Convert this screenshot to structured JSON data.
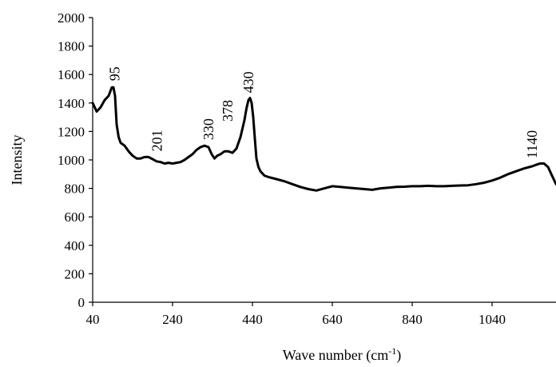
{
  "chart_data": {
    "type": "line",
    "title": "",
    "xlabel": "Wave number (cm",
    "xlabel_sup": "-1",
    "xlabel_end": ")",
    "ylabel": "Intensity",
    "xlim": [
      40,
      1200
    ],
    "ylim": [
      0,
      2000
    ],
    "x_ticks": [
      40,
      240,
      440,
      640,
      840,
      1040
    ],
    "y_ticks": [
      0,
      200,
      400,
      600,
      800,
      1000,
      1200,
      1400,
      1600,
      1800,
      2000
    ],
    "grid": false,
    "legend": "none",
    "line_color": "#000000",
    "series": [
      {
        "x": [
          40,
          50,
          60,
          70,
          80,
          88,
          92,
          96,
          100,
          105,
          110,
          120,
          130,
          140,
          150,
          160,
          170,
          180,
          190,
          200,
          210,
          220,
          230,
          240,
          250,
          260,
          270,
          280,
          290,
          300,
          310,
          320,
          330,
          338,
          345,
          352,
          360,
          370,
          380,
          390,
          400,
          410,
          420,
          425,
          430,
          434,
          438,
          442,
          446,
          450,
          455,
          460,
          470,
          480,
          500,
          520,
          530,
          540,
          560,
          580,
          600,
          620,
          640,
          660,
          680,
          700,
          720,
          740,
          760,
          780,
          800,
          820,
          840,
          860,
          880,
          900,
          920,
          940,
          960,
          980,
          1000,
          1020,
          1040,
          1060,
          1080,
          1100,
          1120,
          1140,
          1150,
          1160,
          1170,
          1180,
          1190,
          1200
        ],
        "values": [
          1400,
          1340,
          1370,
          1420,
          1450,
          1510,
          1510,
          1450,
          1250,
          1160,
          1120,
          1100,
          1060,
          1030,
          1010,
          1010,
          1020,
          1020,
          1005,
          990,
          985,
          975,
          980,
          975,
          980,
          985,
          1000,
          1020,
          1040,
          1070,
          1090,
          1100,
          1090,
          1040,
          1010,
          1030,
          1040,
          1060,
          1060,
          1050,
          1080,
          1160,
          1280,
          1360,
          1420,
          1435,
          1400,
          1300,
          1150,
          1010,
          950,
          920,
          890,
          880,
          865,
          850,
          840,
          830,
          810,
          795,
          785,
          800,
          815,
          810,
          805,
          800,
          795,
          790,
          800,
          805,
          810,
          812,
          815,
          815,
          818,
          815,
          815,
          818,
          820,
          822,
          830,
          840,
          855,
          875,
          900,
          920,
          940,
          955,
          965,
          975,
          975,
          950,
          890,
          830
        ]
      }
    ],
    "annotations": [
      {
        "text": "95",
        "x": 95,
        "y": 1555
      },
      {
        "text": "201",
        "x": 201,
        "y": 1060
      },
      {
        "text": "330",
        "x": 330,
        "y": 1140
      },
      {
        "text": "378",
        "x": 378,
        "y": 1270
      },
      {
        "text": "430",
        "x": 430,
        "y": 1470
      },
      {
        "text": "1140",
        "x": 1140,
        "y": 1010
      }
    ]
  }
}
